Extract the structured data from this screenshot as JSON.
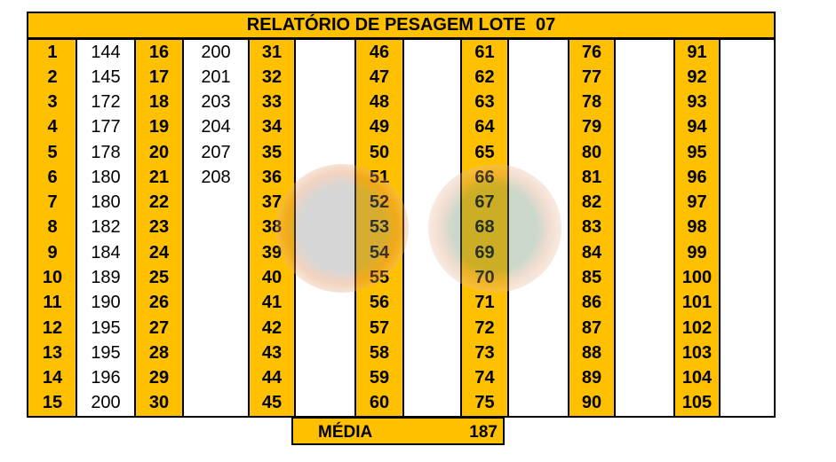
{
  "title": "RELATÓRIO DE PESAGEM LOTE  07",
  "columns": [
    {
      "numbers": [
        1,
        2,
        3,
        4,
        5,
        6,
        7,
        8,
        9,
        10,
        11,
        12,
        13,
        14,
        15
      ],
      "weights": [
        144,
        145,
        172,
        177,
        178,
        180,
        180,
        182,
        184,
        189,
        190,
        195,
        195,
        196,
        200
      ]
    },
    {
      "numbers": [
        16,
        17,
        18,
        19,
        20,
        21,
        22,
        23,
        24,
        25,
        26,
        27,
        28,
        29,
        30
      ],
      "weights": [
        200,
        201,
        203,
        204,
        207,
        208
      ]
    },
    {
      "numbers": [
        31,
        32,
        33,
        34,
        35,
        36,
        37,
        38,
        39,
        40,
        41,
        42,
        43,
        44,
        45
      ]
    },
    {
      "numbers": [
        46,
        47,
        48,
        49,
        50,
        51,
        52,
        53,
        54,
        55,
        56,
        57,
        58,
        59,
        60
      ]
    },
    {
      "numbers": [
        61,
        62,
        63,
        64,
        65,
        66,
        67,
        68,
        69,
        70,
        71,
        72,
        73,
        74,
        75
      ]
    },
    {
      "numbers": [
        76,
        77,
        78,
        79,
        80,
        81,
        82,
        83,
        84,
        85,
        86,
        87,
        88,
        89,
        90
      ]
    },
    {
      "numbers": [
        91,
        92,
        93,
        94,
        95,
        96,
        97,
        98,
        99,
        100,
        101,
        102,
        103,
        104,
        105
      ]
    }
  ],
  "summary": {
    "label": "MÉDIA",
    "value": 187
  }
}
